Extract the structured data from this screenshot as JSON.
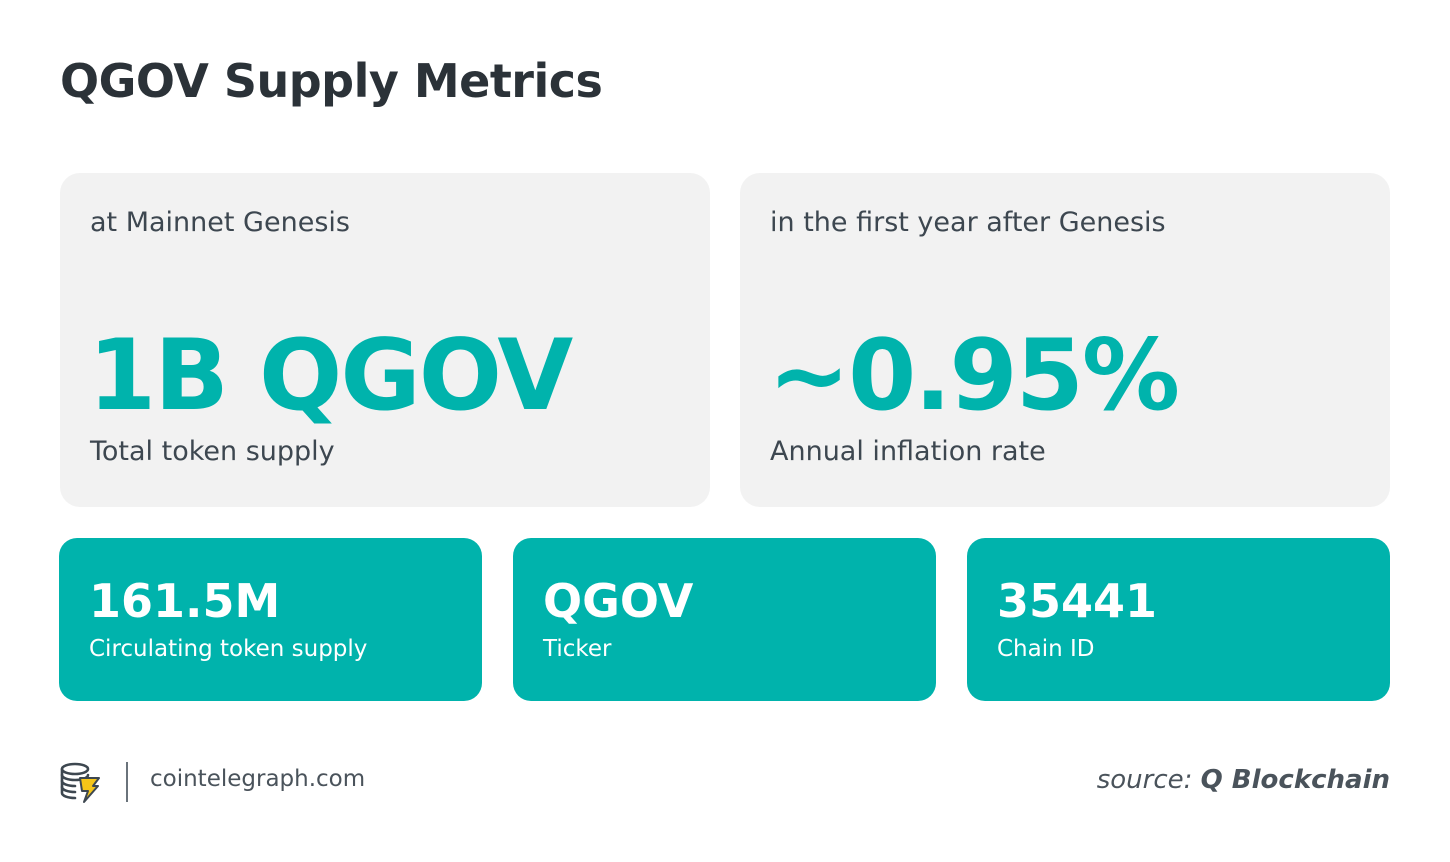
{
  "title": "QGOV Supply Metrics",
  "metrics": {
    "total_supply": {
      "context": "at Mainnet Genesis",
      "value": "1B QGOV",
      "caption": "Total token supply"
    },
    "inflation": {
      "context": "in the first year after Genesis",
      "value": "~0.95%",
      "caption": "Annual inflation rate"
    },
    "circulating": {
      "value": "161.5M",
      "caption": "Circulating token supply"
    },
    "ticker": {
      "value": "QGOV",
      "caption": "Ticker"
    },
    "chain_id": {
      "value": "35441",
      "caption": "Chain ID"
    }
  },
  "footer": {
    "logo_icon": "cointelegraph-logo-icon",
    "site": "cointelegraph.com",
    "source_label": "source:",
    "source_name": "Q Blockchain"
  },
  "colors": {
    "accent": "#00b3ac",
    "card_background": "#f2f2f2",
    "text_dark": "#2b3238",
    "logo_yellow": "#f5c518"
  }
}
